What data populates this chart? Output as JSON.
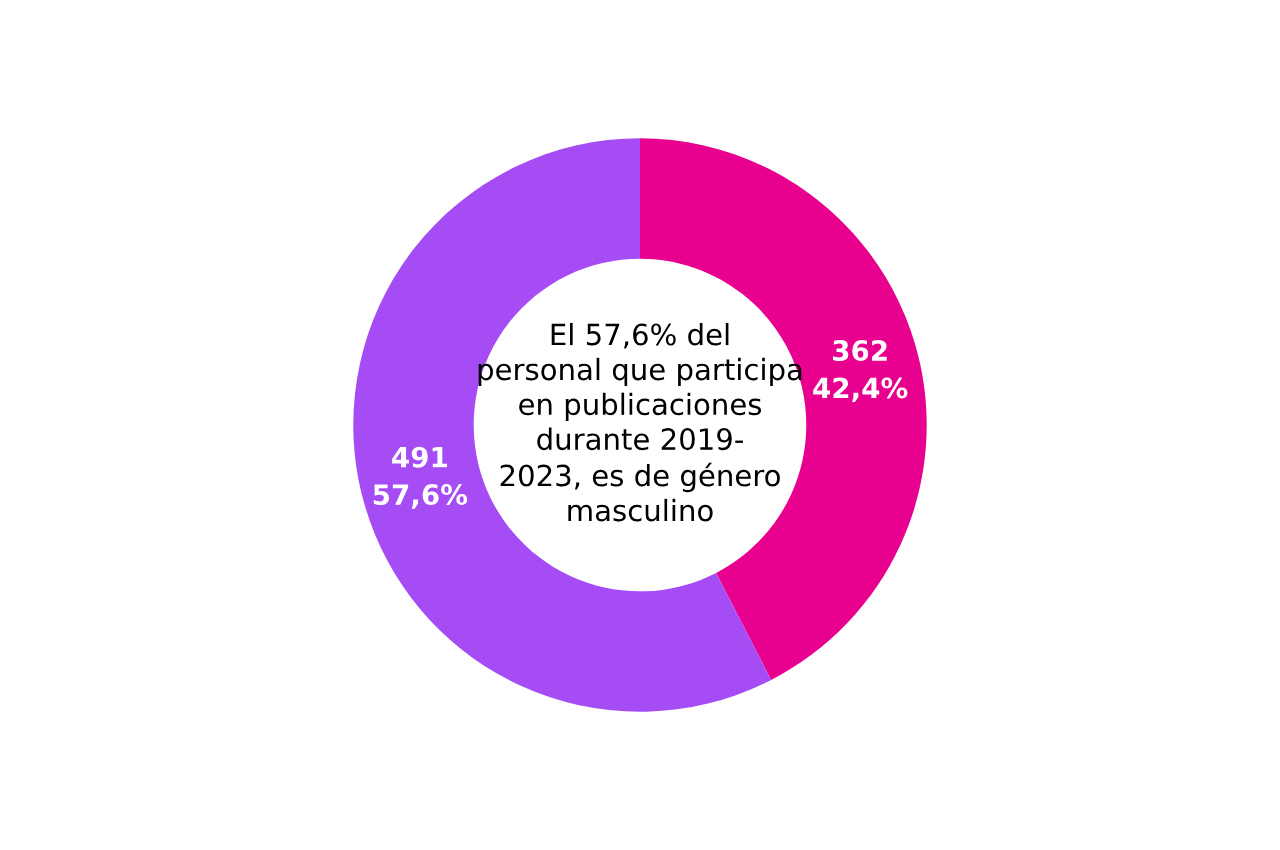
{
  "chart_data": {
    "type": "donut",
    "categories": [
      null,
      null
    ],
    "values": [
      362,
      491
    ],
    "colors": [
      "#e8008e",
      "#a64cf5"
    ],
    "value_labels": [
      "362\n42,4%",
      "491\n57,6%"
    ],
    "annotations": [
      "El 57,6% del\npersonal que participa\nen publicaciones\ndurante 2019-\n2023, es de género\nmasculino"
    ]
  }
}
